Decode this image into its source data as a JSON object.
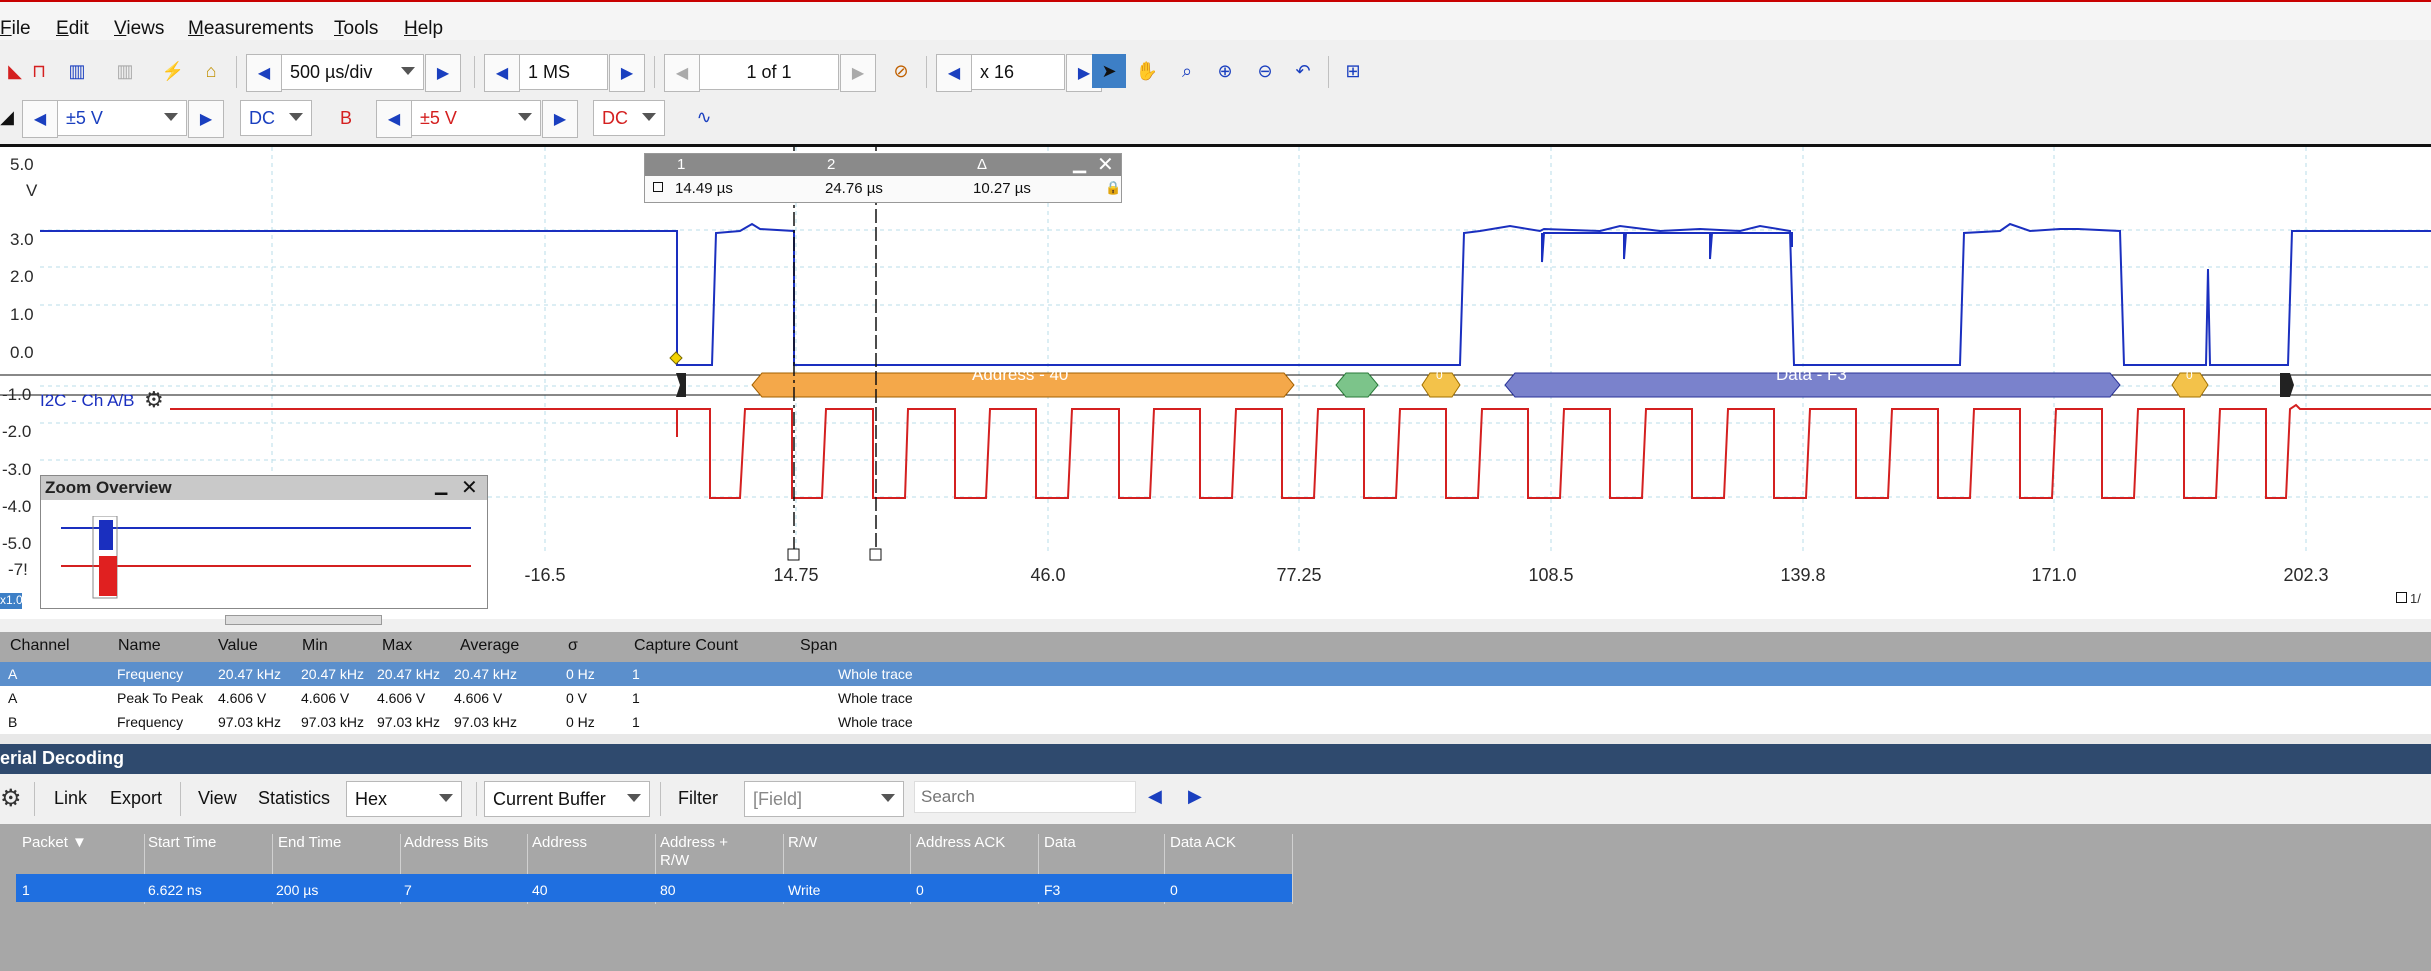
{
  "menu": [
    "File",
    "Edit",
    "Views",
    "Measurements",
    "Tools",
    "Help"
  ],
  "toolbar1": {
    "timebase": "500 µs/div",
    "samples": "1 MS",
    "buffer": "1 of 1",
    "zoom": "x 16"
  },
  "toolbar2": {
    "chA_range": "±5 V",
    "chA_coupling": "DC",
    "chB_label": "B",
    "chB_range": "±5 V",
    "chB_coupling": "DC"
  },
  "scope": {
    "y_labels": [
      "5.0",
      "V",
      "3.0",
      "2.0",
      "1.0",
      "0.0",
      "-1.0",
      "-2.0",
      "-3.0",
      "-4.0",
      "-5.0",
      "-7!"
    ],
    "x_labels": [
      "-16.5",
      "14.75",
      "46.0",
      "77.25",
      "108.5",
      "139.8",
      "171.0",
      "202.3"
    ],
    "i2c_label": "I2C - Ch A/B",
    "address_label": "Address - 40",
    "data_label": "Data - F3",
    "ack_label": "0",
    "small_badge": "x1.0",
    "right_badge": "1/"
  },
  "rulers": {
    "headers": [
      "1",
      "2",
      "Δ"
    ],
    "values": [
      "14.49 µs",
      "24.76 µs",
      "10.27 µs"
    ]
  },
  "zoom_overview": {
    "title": "Zoom Overview"
  },
  "measurements": {
    "headers": [
      "Channel",
      "Name",
      "Value",
      "Min",
      "Max",
      "Average",
      "σ",
      "Capture Count",
      "Span"
    ],
    "rows": [
      [
        "A",
        "Frequency",
        "20.47 kHz",
        "20.47 kHz",
        "20.47 kHz",
        "20.47 kHz",
        "0 Hz",
        "1",
        "Whole trace"
      ],
      [
        "A",
        "Peak To Peak",
        "4.606 V",
        "4.606 V",
        "4.606 V",
        "4.606 V",
        "0 V",
        "1",
        "Whole trace"
      ],
      [
        "B",
        "Frequency",
        "97.03 kHz",
        "97.03 kHz",
        "97.03 kHz",
        "97.03 kHz",
        "0 Hz",
        "1",
        "Whole trace"
      ]
    ]
  },
  "serial": {
    "title": "erial Decoding",
    "toolbar": {
      "link": "Link",
      "export": "Export",
      "view": "View",
      "statistics": "Statistics",
      "format": "Hex",
      "buffer": "Current Buffer",
      "filter": "Filter",
      "field_placeholder": "[Field]",
      "search_placeholder": "Search"
    },
    "headers": [
      "Packet ▼",
      "Start Time",
      "End Time",
      "Address Bits",
      "Address",
      "Address + R/W",
      "R/W",
      "Address ACK",
      "Data",
      "Data ACK"
    ],
    "rows": [
      [
        "1",
        "6.622 ns",
        "200 µs",
        "7",
        "40",
        "80",
        "Write",
        "0",
        "F3",
        "0"
      ]
    ]
  },
  "colors": {
    "channel_a": "#1a2fbf",
    "channel_b": "#d42020",
    "address_fill": "#f4a84a",
    "data_fill": "#7a82cc",
    "ack_fill": "#f3c24a",
    "start_fill": "#7cc48a",
    "selected_row": "#3d7fc6",
    "serial_selected": "#1f6fe0"
  }
}
